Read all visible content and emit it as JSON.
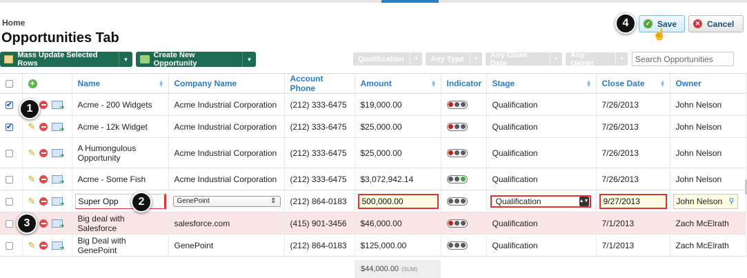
{
  "breadcrumb": "Home",
  "page_title": "Opportunities Tab",
  "header_buttons": {
    "save": "Save",
    "cancel": "Cancel"
  },
  "toolbar": {
    "mass_update": "Mass Update Selected Rows",
    "create_new": "Create New Opportunity"
  },
  "filters": [
    "Qualification",
    "Any Type",
    "Any Close Date",
    "Any Owner"
  ],
  "search": {
    "placeholder": "Search Opportunities"
  },
  "columns": [
    "Name",
    "Company Name",
    "Account Phone",
    "Amount",
    "Indicator",
    "Stage",
    "Close Date",
    "Owner"
  ],
  "rows": [
    {
      "name": "Acme - 200 Widgets",
      "company": "Acme Industrial Corporation",
      "phone": "(212) 333-6475",
      "amount": "$19,000.00",
      "stage": "Qualification",
      "close_date": "7/26/2013",
      "owner": "John Nelson",
      "checked": true
    },
    {
      "name": "Acme - 12k Widget",
      "company": "Acme Industrial Corporation",
      "phone": "(212) 333-6475",
      "amount": "$25,000.00",
      "stage": "Qualification",
      "close_date": "7/26/2013",
      "owner": "John Nelson",
      "checked": true
    },
    {
      "name": "A Humongulous Opportunity",
      "company": "Acme Industrial Corporation",
      "phone": "(212) 333-6475",
      "amount": "$25,000.00",
      "stage": "Qualification",
      "close_date": "7/26/2013",
      "owner": "John Nelson",
      "checked": false
    },
    {
      "name": "Acme - Some Fish",
      "company": "Acme Industrial Corporation",
      "phone": "(212) 333-6475",
      "amount": "$3,072,942.14",
      "stage": "Qualification",
      "close_date": "7/26/2013",
      "owner": "John Nelson",
      "checked": false
    }
  ],
  "edit_row": {
    "name": "Super Opp",
    "company": "GenePoint",
    "phone": "(212) 864-0183",
    "amount": "500,000.00",
    "stage": "Qualification",
    "close_date": "9/27/2013",
    "owner": "John Nelson"
  },
  "rows_after": [
    {
      "name": "Big deal with Salesforce",
      "company": "salesforce.com",
      "phone": "(415) 901-3456",
      "amount": "$46,000.00",
      "stage": "Qualification",
      "close_date": "7/1/2013",
      "owner": "Zach McElrath",
      "highlight": true
    },
    {
      "name": "Big Deal with GenePoint",
      "company": "GenePoint",
      "phone": "(212) 864-0183",
      "amount": "$125,000.00",
      "stage": "Qualification",
      "close_date": "7/1/2013",
      "owner": "Zach McElrath",
      "highlight": false
    }
  ],
  "sum": {
    "value": "$44,000.00",
    "label": "(SUM)"
  },
  "callouts": [
    "1",
    "2",
    "3",
    "4"
  ],
  "colors": {
    "accent": "#2a7ec2",
    "toolbar_green": "#1d6b52",
    "error_red": "#dd3333",
    "highlight_row": "#fae6e6"
  }
}
